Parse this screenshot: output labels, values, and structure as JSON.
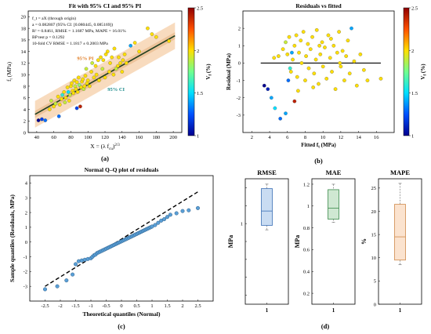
{
  "colors": {
    "colormap": [
      "#00008f",
      "#0050ff",
      "#00dfff",
      "#70ff8f",
      "#ffdf00",
      "#ff5000",
      "#8f0000"
    ],
    "point_fill": "#e6d84a",
    "ci_band": "#f5cfa8",
    "fit_line": "#1f3f1f",
    "qq_point": "#5a9fd6",
    "rmse_box": "#c9dcf2",
    "mae_box": "#cfe8d2",
    "mape_box": "#fbe3cf"
  },
  "chart_data": [
    {
      "id": "a",
      "type": "scatter",
      "title": "Fit with 95% CI and 95% PI",
      "panel_label": "(a)",
      "xlabel_main": "X = (λ f",
      "xlabel_sub": "cu",
      "xlabel_sup": "2/3",
      "xlabel_close": ")",
      "ylabel_main": "f",
      "ylabel_sub": "t",
      "ylabel_rest": " (MPa)",
      "xlim": [
        30,
        210
      ],
      "ylim": [
        0,
        21
      ],
      "xticks": [
        40,
        60,
        80,
        100,
        120,
        140,
        160,
        180,
        200
      ],
      "yticks": [
        0,
        2,
        4,
        6,
        8,
        10,
        12,
        14,
        16,
        18,
        20
      ],
      "annotations": [
        "f_t = aX (through origin)",
        "a = 0.082807 (95% CI: [0.080445, 0.085169])",
        "R² = 0.8461, RMSE = 1.1687 MPa, MAPE = 16.01%",
        "BP test p = 0.1292",
        "10-fold CV RMSE = 1.1817 ± 0.2003 MPa"
      ],
      "label_pi": "95% PI",
      "label_ci": "95% CI",
      "colorbar": {
        "label": "V_f (%)",
        "ticks": [
          1,
          1.5,
          2,
          2.5
        ],
        "range": [
          1,
          2.5
        ]
      },
      "fit": {
        "slope": 0.082807,
        "ci_halfwidth": 0.6,
        "pi_halfwidth": 2.3
      },
      "points": [
        [
          42,
          2.1,
          1.0
        ],
        [
          46,
          2.3,
          1.2
        ],
        [
          50,
          2.1,
          1.3
        ],
        [
          55,
          4.0,
          2.0
        ],
        [
          57,
          5.5,
          1.9
        ],
        [
          60,
          4.5,
          2.0
        ],
        [
          62,
          5.0,
          1.9
        ],
        [
          65,
          6.2,
          2.0
        ],
        [
          66,
          2.8,
          1.3
        ],
        [
          67,
          4.8,
          2.0
        ],
        [
          69,
          5.8,
          2.0
        ],
        [
          70,
          6.5,
          1.6
        ],
        [
          72,
          7.0,
          2.0
        ],
        [
          73,
          5.2,
          1.9
        ],
        [
          74,
          6.0,
          2.0
        ],
        [
          76,
          7.8,
          2.0
        ],
        [
          77,
          7.0,
          1.5
        ],
        [
          78,
          5.5,
          2.0
        ],
        [
          79,
          6.5,
          1.9
        ],
        [
          80,
          8.0,
          2.0
        ],
        [
          81,
          8.5,
          2.0
        ],
        [
          82,
          7.2,
          2.0
        ],
        [
          83,
          6.8,
          2.0
        ],
        [
          84,
          9.0,
          2.0
        ],
        [
          85,
          8.0,
          1.9
        ],
        [
          86,
          7.5,
          2.0
        ],
        [
          87,
          4.2,
          1.2
        ],
        [
          87,
          8.7,
          2.0
        ],
        [
          88,
          7.0,
          2.0
        ],
        [
          89,
          9.5,
          2.0
        ],
        [
          90,
          8.2,
          1.8
        ],
        [
          91,
          4.5,
          2.4
        ],
        [
          92,
          7.8,
          2.0
        ],
        [
          93,
          8.8,
          2.0
        ],
        [
          94,
          9.2,
          2.0
        ],
        [
          95,
          7.5,
          1.9
        ],
        [
          96,
          8.0,
          2.0
        ],
        [
          97,
          9.8,
          2.0
        ],
        [
          98,
          11.0,
          1.9
        ],
        [
          99,
          8.5,
          2.0
        ],
        [
          100,
          9.0,
          2.0
        ],
        [
          102,
          8.0,
          2.0
        ],
        [
          104,
          10.5,
          2.0
        ],
        [
          105,
          12.0,
          1.9
        ],
        [
          107,
          9.5,
          2.0
        ],
        [
          109,
          11.5,
          2.0
        ],
        [
          110,
          10.0,
          2.0
        ],
        [
          112,
          12.5,
          2.0
        ],
        [
          113,
          9.0,
          2.0
        ],
        [
          115,
          13.0,
          2.0
        ],
        [
          117,
          11.0,
          1.9
        ],
        [
          118,
          12.5,
          2.0
        ],
        [
          120,
          9.5,
          2.0
        ],
        [
          121,
          13.5,
          2.0
        ],
        [
          123,
          14.0,
          2.0
        ],
        [
          125,
          10.5,
          2.0
        ],
        [
          126,
          12.0,
          2.0
        ],
        [
          128,
          13.0,
          2.0
        ],
        [
          130,
          10.0,
          2.0
        ],
        [
          131,
          14.5,
          2.0
        ],
        [
          133,
          11.0,
          1.9
        ],
        [
          135,
          11.5,
          2.0
        ],
        [
          136,
          13.0,
          2.0
        ],
        [
          138,
          12.0,
          2.0
        ],
        [
          140,
          10.5,
          2.0
        ],
        [
          141,
          12.5,
          2.0
        ],
        [
          143,
          13.5,
          2.0
        ],
        [
          145,
          12.0,
          2.0
        ],
        [
          150,
          15.0,
          1.4
        ],
        [
          155,
          15.5,
          2.0
        ],
        [
          160,
          14.0,
          2.0
        ],
        [
          170,
          18.0,
          2.0
        ],
        [
          175,
          17.0,
          2.0
        ],
        [
          180,
          16.5,
          2.0
        ],
        [
          195,
          15.8,
          2.0
        ]
      ]
    },
    {
      "id": "b",
      "type": "scatter",
      "title": "Residuals vs fitted",
      "panel_label": "(b)",
      "xlabel_main": "Fitted f",
      "xlabel_sub": "t",
      "xlabel_rest": " (MPa)",
      "ylabel": "Residual (MPa)",
      "xlim": [
        1,
        18
      ],
      "ylim": [
        -4,
        3
      ],
      "xticks": [
        2,
        4,
        6,
        8,
        10,
        12,
        14,
        16
      ],
      "yticks": [
        -3,
        -2,
        -1,
        0,
        1,
        2
      ],
      "colorbar": {
        "label": "V_f (%)",
        "ticks": [
          1,
          1.5,
          2,
          2.5
        ],
        "range": [
          1,
          2.5
        ]
      },
      "points": [
        [
          3.4,
          -1.3,
          1.0
        ],
        [
          3.8,
          -1.5,
          1.1
        ],
        [
          4.2,
          -2.0,
          1.4
        ],
        [
          4.6,
          -2.6,
          1.5
        ],
        [
          5.2,
          -3.2,
          1.3
        ],
        [
          5.8,
          -2.9,
          1.4
        ],
        [
          6.1,
          -1.0,
          1.3
        ],
        [
          6.3,
          -0.3,
          1.6
        ],
        [
          6.5,
          0.6,
          1.4
        ],
        [
          6.8,
          -2.2,
          2.4
        ],
        [
          4.5,
          0.3,
          2.0
        ],
        [
          5.0,
          0.4,
          2.0
        ],
        [
          5.5,
          0.8,
          2.0
        ],
        [
          5.8,
          1.2,
          1.9
        ],
        [
          6.0,
          0.5,
          2.0
        ],
        [
          6.2,
          1.5,
          2.0
        ],
        [
          6.4,
          -0.5,
          2.0
        ],
        [
          6.6,
          0.2,
          2.0
        ],
        [
          6.8,
          1.0,
          2.0
        ],
        [
          7.0,
          1.6,
          2.0
        ],
        [
          7.1,
          -0.8,
          2.0
        ],
        [
          7.3,
          0.6,
          2.0
        ],
        [
          7.5,
          1.3,
          2.0
        ],
        [
          7.6,
          0.0,
          2.0
        ],
        [
          7.8,
          1.8,
          2.0
        ],
        [
          8.0,
          -1.0,
          2.0
        ],
        [
          8.1,
          0.4,
          2.0
        ],
        [
          8.3,
          1.1,
          2.0
        ],
        [
          8.4,
          -0.3,
          2.0
        ],
        [
          8.6,
          0.8,
          2.0
        ],
        [
          8.8,
          1.5,
          2.0
        ],
        [
          9.0,
          -0.6,
          2.0
        ],
        [
          9.2,
          0.2,
          2.0
        ],
        [
          9.3,
          1.9,
          2.0
        ],
        [
          9.5,
          -1.2,
          2.0
        ],
        [
          9.7,
          0.5,
          2.0
        ],
        [
          9.9,
          1.2,
          2.0
        ],
        [
          10.0,
          -0.2,
          2.0
        ],
        [
          10.2,
          0.9,
          2.0
        ],
        [
          10.4,
          -0.9,
          2.0
        ],
        [
          10.6,
          1.6,
          2.0
        ],
        [
          10.8,
          0.3,
          2.0
        ],
        [
          11.0,
          -0.5,
          2.0
        ],
        [
          11.2,
          1.0,
          2.0
        ],
        [
          11.4,
          -1.5,
          2.0
        ],
        [
          11.6,
          0.6,
          2.0
        ],
        [
          11.8,
          1.8,
          2.0
        ],
        [
          12.0,
          -0.2,
          2.0
        ],
        [
          12.2,
          0.7,
          2.0
        ],
        [
          12.4,
          -1.0,
          2.0
        ],
        [
          12.6,
          0.4,
          2.0
        ],
        [
          12.8,
          1.3,
          2.0
        ],
        [
          13.0,
          -0.6,
          2.0
        ],
        [
          13.2,
          2.0,
          1.4
        ],
        [
          13.5,
          0.1,
          2.0
        ],
        [
          13.8,
          -1.3,
          2.0
        ],
        [
          14.2,
          0.5,
          2.0
        ],
        [
          14.6,
          -0.4,
          2.0
        ],
        [
          15.0,
          -1.0,
          2.0
        ],
        [
          16.5,
          -0.9,
          2.0
        ],
        [
          7.2,
          -1.6,
          2.0
        ],
        [
          8.9,
          -1.4,
          2.0
        ],
        [
          9.6,
          1.0,
          2.0
        ],
        [
          10.9,
          1.4,
          2.0
        ],
        [
          11.9,
          0.0,
          2.0
        ]
      ]
    },
    {
      "id": "c",
      "type": "scatter",
      "title": "Normal Q–Q plot of residuals",
      "panel_label": "(c)",
      "xlabel": "Theoretical quantiles (Normal)",
      "ylabel": "Sample quantiles (Residuals, MPa)",
      "xlim": [
        -3,
        3
      ],
      "ylim": [
        -4,
        4.5
      ],
      "xticks": [
        -2.5,
        -2,
        -1.5,
        -1,
        -0.5,
        0,
        0.5,
        1,
        1.5,
        2,
        2.5
      ],
      "yticks": [
        -3,
        -2,
        -1,
        0,
        1,
        2,
        3,
        4
      ],
      "reference_line": [
        [
          -2.5,
          -3.0
        ],
        [
          2.5,
          3.4
        ]
      ],
      "quantiles": [
        [
          -2.5,
          -3.2
        ],
        [
          -2.1,
          -3.0
        ],
        [
          -1.8,
          -2.6
        ],
        [
          -1.6,
          -2.2
        ],
        [
          -1.5,
          -1.5
        ],
        [
          -1.4,
          -1.3
        ],
        [
          -1.3,
          -1.25
        ],
        [
          -1.2,
          -1.2
        ],
        [
          -1.1,
          -1.15
        ],
        [
          -1.0,
          -1.1
        ],
        [
          -0.95,
          -1.0
        ],
        [
          -0.9,
          -0.9
        ],
        [
          -0.85,
          -0.85
        ],
        [
          -0.8,
          -0.75
        ],
        [
          -0.75,
          -0.7
        ],
        [
          -0.7,
          -0.65
        ],
        [
          -0.65,
          -0.6
        ],
        [
          -0.6,
          -0.55
        ],
        [
          -0.55,
          -0.5
        ],
        [
          -0.5,
          -0.45
        ],
        [
          -0.45,
          -0.4
        ],
        [
          -0.4,
          -0.35
        ],
        [
          -0.35,
          -0.3
        ],
        [
          -0.3,
          -0.25
        ],
        [
          -0.25,
          -0.2
        ],
        [
          -0.2,
          -0.15
        ],
        [
          -0.15,
          -0.1
        ],
        [
          -0.1,
          -0.05
        ],
        [
          -0.05,
          0.0
        ],
        [
          0.0,
          0.05
        ],
        [
          0.05,
          0.1
        ],
        [
          0.1,
          0.15
        ],
        [
          0.15,
          0.2
        ],
        [
          0.2,
          0.25
        ],
        [
          0.25,
          0.3
        ],
        [
          0.3,
          0.35
        ],
        [
          0.35,
          0.4
        ],
        [
          0.4,
          0.45
        ],
        [
          0.45,
          0.5
        ],
        [
          0.5,
          0.55
        ],
        [
          0.55,
          0.6
        ],
        [
          0.6,
          0.65
        ],
        [
          0.65,
          0.7
        ],
        [
          0.7,
          0.75
        ],
        [
          0.75,
          0.8
        ],
        [
          0.8,
          0.85
        ],
        [
          0.85,
          0.9
        ],
        [
          0.9,
          0.95
        ],
        [
          0.95,
          1.0
        ],
        [
          1.0,
          1.05
        ],
        [
          1.1,
          1.15
        ],
        [
          1.2,
          1.3
        ],
        [
          1.3,
          1.45
        ],
        [
          1.4,
          1.55
        ],
        [
          1.5,
          1.7
        ],
        [
          1.6,
          1.85
        ],
        [
          1.8,
          1.95
        ],
        [
          2.0,
          2.1
        ],
        [
          2.2,
          2.15
        ],
        [
          2.5,
          2.3
        ]
      ]
    },
    {
      "id": "d",
      "type": "box",
      "panel_label": "(d)",
      "boxes": [
        {
          "title": "RMSE",
          "ylabel": "MPa",
          "xtick": "1",
          "ylim": [
            0.1,
            1.5
          ],
          "yticks": [
            0.2,
            0.4,
            0.6,
            0.8,
            1,
            1.2,
            1.4
          ],
          "ytick_labels": [
            "",
            "",
            "",
            "",
            "1",
            "",
            ""
          ],
          "min": 0.93,
          "q1": 0.98,
          "median": 1.14,
          "q3": 1.39,
          "max": 1.44,
          "color_key": "rmse_box",
          "edge": "#3a6fb5"
        },
        {
          "title": "MAE",
          "ylabel": "MPa",
          "xtick": "1",
          "ylim": [
            0.1,
            1.25
          ],
          "yticks": [
            0.2,
            0.4,
            0.6,
            0.8,
            1,
            1.2
          ],
          "ytick_labels": [
            "0.2",
            "0.4",
            "0.6",
            "0.8",
            "1",
            "1.2"
          ],
          "min": 0.85,
          "q1": 0.88,
          "median": 0.98,
          "q3": 1.15,
          "max": 1.2,
          "color_key": "mae_box",
          "edge": "#3a8a4a"
        },
        {
          "title": "MAPE",
          "ylabel": "%",
          "xtick": "1",
          "ylim": [
            0,
            27
          ],
          "yticks": [
            0,
            5,
            10,
            15,
            20,
            25
          ],
          "ytick_labels": [
            "0",
            "5",
            "10",
            "15",
            "20",
            "25"
          ],
          "min": 8.5,
          "q1": 9.5,
          "median": 14.5,
          "q3": 21.5,
          "max": 26.0,
          "color_key": "mape_box",
          "edge": "#d08a4a"
        }
      ]
    }
  ]
}
